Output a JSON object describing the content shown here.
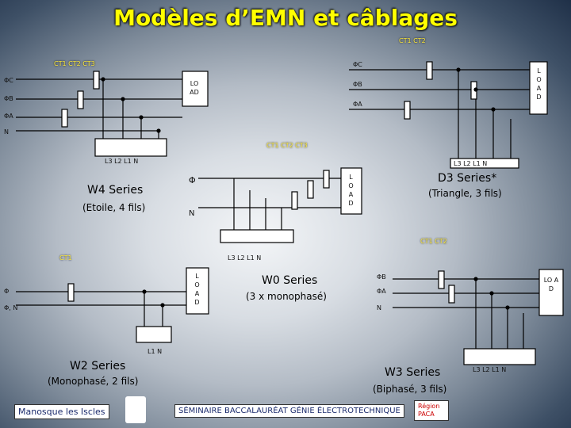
{
  "title": "Modèles d’EMN et câblages",
  "d3": {
    "ct": "CT1 CT2",
    "phases": [
      "ΦC",
      "ΦB",
      "ΦA"
    ],
    "load": "L O A D",
    "terminals": "L3 L2 L1 N",
    "name": "D3 Series*",
    "wiring": "(Triangle, 3 fils)"
  },
  "w4": {
    "ct": "CT1 CT2 CT3",
    "phases": [
      "ΦC",
      "ΦB",
      "ΦA",
      "N"
    ],
    "load": "LO AD",
    "terminals": "L3 L2 L1 N",
    "name": "W4 Series",
    "wiring": "(Etoile, 4 fils)"
  },
  "w0": {
    "ct": "CT1 CT2 CT3",
    "phases": [
      "Φ",
      "N"
    ],
    "load": "L O A D",
    "terminals": "L3 L2 L1 N",
    "name": "W0 Series",
    "wiring": "(3 x monophasé)"
  },
  "w2": {
    "ct": "CT1",
    "phases": [
      "Φ",
      "Φ, N"
    ],
    "load": "L O A D",
    "terminals": "L1 N",
    "name": "W2 Series",
    "wiring": "(Monophasé, 2 fils)"
  },
  "w3": {
    "ct": "CT1 CT2",
    "phases": [
      "ΦB",
      "ΦA",
      "N"
    ],
    "load": "LO A D",
    "terminals": "L3 L2 L1 N",
    "name": "W3 Series",
    "wiring": "(Biphasé, 3 fils)"
  },
  "footer": {
    "school": "Manosque les Iscles",
    "seminar": "SÉMINAIRE BACCALAURÉAT GÉNIE ÉLECTROTECHNIQUE",
    "region": "Région PACA"
  }
}
